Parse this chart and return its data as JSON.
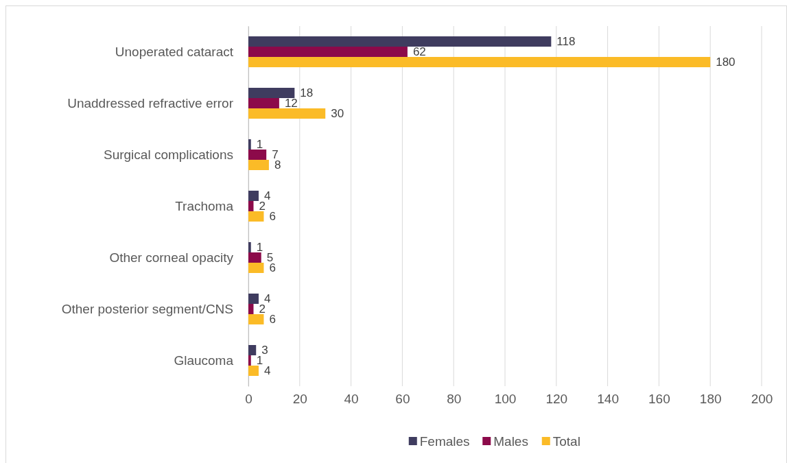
{
  "chart_data": {
    "type": "bar",
    "orientation": "horizontal",
    "categories": [
      "Unoperated cataract",
      "Unaddressed refractive error",
      "Surgical complications",
      "Trachoma",
      "Other corneal opacity",
      "Other posterior segment/CNS",
      "Glaucoma"
    ],
    "series": [
      {
        "name": "Females",
        "color": "#3f3c5f",
        "values": [
          118,
          18,
          1,
          4,
          1,
          4,
          3
        ]
      },
      {
        "name": "Males",
        "color": "#8c0a4a",
        "values": [
          62,
          12,
          7,
          2,
          5,
          2,
          1
        ]
      },
      {
        "name": "Total",
        "color": "#fbbb27",
        "values": [
          180,
          30,
          8,
          6,
          6,
          6,
          4
        ]
      }
    ],
    "xlim": [
      0,
      200
    ],
    "xticks": [
      0,
      20,
      40,
      60,
      80,
      100,
      120,
      140,
      160,
      180,
      200
    ],
    "grid": "x",
    "legend": "bottom",
    "data_labels": true
  }
}
